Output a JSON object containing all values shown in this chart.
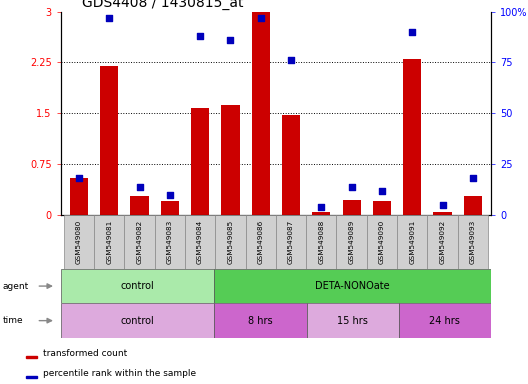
{
  "title": "GDS4408 / 1430815_at",
  "samples": [
    "GSM549080",
    "GSM549081",
    "GSM549082",
    "GSM549083",
    "GSM549084",
    "GSM549085",
    "GSM549086",
    "GSM549087",
    "GSM549088",
    "GSM549089",
    "GSM549090",
    "GSM549091",
    "GSM549092",
    "GSM549093"
  ],
  "transformed_count": [
    0.55,
    2.2,
    0.28,
    0.2,
    1.58,
    1.62,
    3.0,
    1.48,
    0.04,
    0.22,
    0.2,
    2.3,
    0.05,
    0.28
  ],
  "percentile_rank": [
    18,
    97,
    14,
    10,
    88,
    86,
    97,
    76,
    4,
    14,
    12,
    90,
    5,
    18
  ],
  "ylim_left": [
    0,
    3
  ],
  "ylim_right": [
    0,
    100
  ],
  "yticks_left": [
    0,
    0.75,
    1.5,
    2.25,
    3
  ],
  "yticks_right": [
    0,
    25,
    50,
    75,
    100
  ],
  "ytick_labels_left": [
    "0",
    "0.75",
    "1.5",
    "2.25",
    "3"
  ],
  "ytick_labels_right": [
    "0",
    "25",
    "50",
    "75",
    "100%"
  ],
  "bar_color": "#cc0000",
  "dot_color": "#0000bb",
  "title_fontsize": 10,
  "tick_fontsize": 7,
  "agent_groups": [
    {
      "label": "control",
      "start": 0,
      "end": 5,
      "color": "#aaeaaa"
    },
    {
      "label": "DETA-NONOate",
      "start": 5,
      "end": 14,
      "color": "#55cc55"
    }
  ],
  "time_groups": [
    {
      "label": "control",
      "start": 0,
      "end": 5,
      "color": "#ddaadd"
    },
    {
      "label": "8 hrs",
      "start": 5,
      "end": 8,
      "color": "#cc66cc"
    },
    {
      "label": "15 hrs",
      "start": 8,
      "end": 11,
      "color": "#ddaadd"
    },
    {
      "label": "24 hrs",
      "start": 11,
      "end": 14,
      "color": "#cc66cc"
    }
  ],
  "legend_items": [
    {
      "label": "transformed count",
      "color": "#cc0000"
    },
    {
      "label": "percentile rank within the sample",
      "color": "#0000bb"
    }
  ],
  "background_color": "#ffffff",
  "sample_bg_color": "#d0d0d0"
}
